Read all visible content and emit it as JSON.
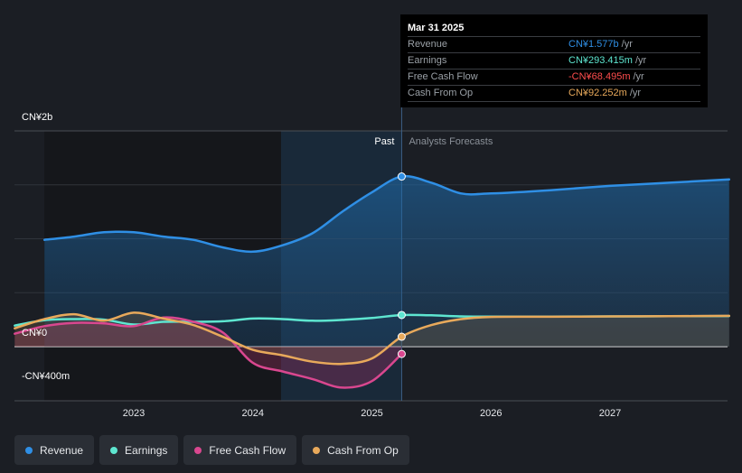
{
  "chart_data": {
    "type": "line",
    "x_unit": "year",
    "y_unit": "CN¥",
    "ylim": [
      -400000000,
      2000000000
    ],
    "y_ticks": [
      {
        "value": 2000000000,
        "label": "CN¥2b"
      },
      {
        "value": 0,
        "label": "CN¥0"
      },
      {
        "value": -400000000,
        "label": "-CN¥400m"
      }
    ],
    "x_ticks": [
      "2023",
      "2024",
      "2025",
      "2026",
      "2027"
    ],
    "past_label": "Past",
    "forecast_label": "Analysts Forecasts",
    "divider_x": 2025.25,
    "series": [
      {
        "name": "Revenue",
        "color": "#2f8fe5",
        "fill": true,
        "points": [
          [
            2022.25,
            990
          ],
          [
            2022.5,
            1020
          ],
          [
            2022.75,
            1060
          ],
          [
            2023.0,
            1060
          ],
          [
            2023.25,
            1020
          ],
          [
            2023.5,
            990
          ],
          [
            2023.75,
            920
          ],
          [
            2024.0,
            880
          ],
          [
            2024.25,
            940
          ],
          [
            2024.5,
            1050
          ],
          [
            2024.75,
            1250
          ],
          [
            2025.0,
            1430
          ],
          [
            2025.25,
            1577
          ],
          [
            2025.5,
            1520
          ],
          [
            2025.75,
            1420
          ],
          [
            2026.0,
            1420
          ],
          [
            2026.5,
            1450
          ],
          [
            2027.0,
            1490
          ],
          [
            2027.5,
            1520
          ],
          [
            2028.0,
            1550
          ]
        ]
      },
      {
        "name": "Earnings",
        "color": "#5ee6d0",
        "fill": false,
        "points": [
          [
            2022.0,
            195
          ],
          [
            2022.25,
            245
          ],
          [
            2022.5,
            255
          ],
          [
            2022.75,
            250
          ],
          [
            2023.0,
            205
          ],
          [
            2023.25,
            230
          ],
          [
            2023.5,
            230
          ],
          [
            2023.75,
            235
          ],
          [
            2024.0,
            260
          ],
          [
            2024.25,
            255
          ],
          [
            2024.5,
            240
          ],
          [
            2024.75,
            248
          ],
          [
            2025.0,
            265
          ],
          [
            2025.25,
            293
          ],
          [
            2025.5,
            290
          ],
          [
            2025.75,
            280
          ],
          [
            2026.0,
            278
          ],
          [
            2026.5,
            278
          ],
          [
            2027.0,
            280
          ],
          [
            2027.5,
            282
          ],
          [
            2028.0,
            284
          ]
        ]
      },
      {
        "name": "Free Cash Flow",
        "color": "#d9478f",
        "fill": true,
        "points": [
          [
            2022.0,
            120
          ],
          [
            2022.25,
            190
          ],
          [
            2022.5,
            220
          ],
          [
            2022.75,
            215
          ],
          [
            2023.0,
            190
          ],
          [
            2023.25,
            270
          ],
          [
            2023.5,
            230
          ],
          [
            2023.75,
            130
          ],
          [
            2024.0,
            -150
          ],
          [
            2024.25,
            -230
          ],
          [
            2024.5,
            -300
          ],
          [
            2024.75,
            -380
          ],
          [
            2025.0,
            -320
          ],
          [
            2025.25,
            -68
          ]
        ]
      },
      {
        "name": "Cash From Op",
        "color": "#e8a95b",
        "fill": true,
        "points": [
          [
            2022.0,
            170
          ],
          [
            2022.25,
            255
          ],
          [
            2022.5,
            300
          ],
          [
            2022.75,
            240
          ],
          [
            2023.0,
            315
          ],
          [
            2023.25,
            260
          ],
          [
            2023.5,
            200
          ],
          [
            2023.75,
            90
          ],
          [
            2024.0,
            -30
          ],
          [
            2024.25,
            -80
          ],
          [
            2024.5,
            -140
          ],
          [
            2024.75,
            -160
          ],
          [
            2025.0,
            -110
          ],
          [
            2025.25,
            92
          ],
          [
            2025.5,
            200
          ],
          [
            2025.75,
            255
          ],
          [
            2026.0,
            275
          ],
          [
            2026.5,
            277
          ],
          [
            2027.0,
            280
          ],
          [
            2027.5,
            282
          ],
          [
            2028.0,
            285
          ]
        ]
      }
    ],
    "series_units": "CN¥ millions"
  },
  "tooltip": {
    "date": "Mar 31 2025",
    "rows": [
      {
        "name": "Revenue",
        "value": "CN¥1.577b",
        "unit": "/yr",
        "color": "#2f8fe5"
      },
      {
        "name": "Earnings",
        "value": "CN¥293.415m",
        "unit": "/yr",
        "color": "#5ee6d0"
      },
      {
        "name": "Free Cash Flow",
        "value": "-CN¥68.495m",
        "unit": "/yr",
        "color": "#ff4d4d"
      },
      {
        "name": "Cash From Op",
        "value": "CN¥92.252m",
        "unit": "/yr",
        "color": "#e8a95b"
      }
    ]
  },
  "legend": [
    {
      "label": "Revenue",
      "color": "#2f8fe5"
    },
    {
      "label": "Earnings",
      "color": "#5ee6d0"
    },
    {
      "label": "Free Cash Flow",
      "color": "#d9478f"
    },
    {
      "label": "Cash From Op",
      "color": "#e8a95b"
    }
  ]
}
